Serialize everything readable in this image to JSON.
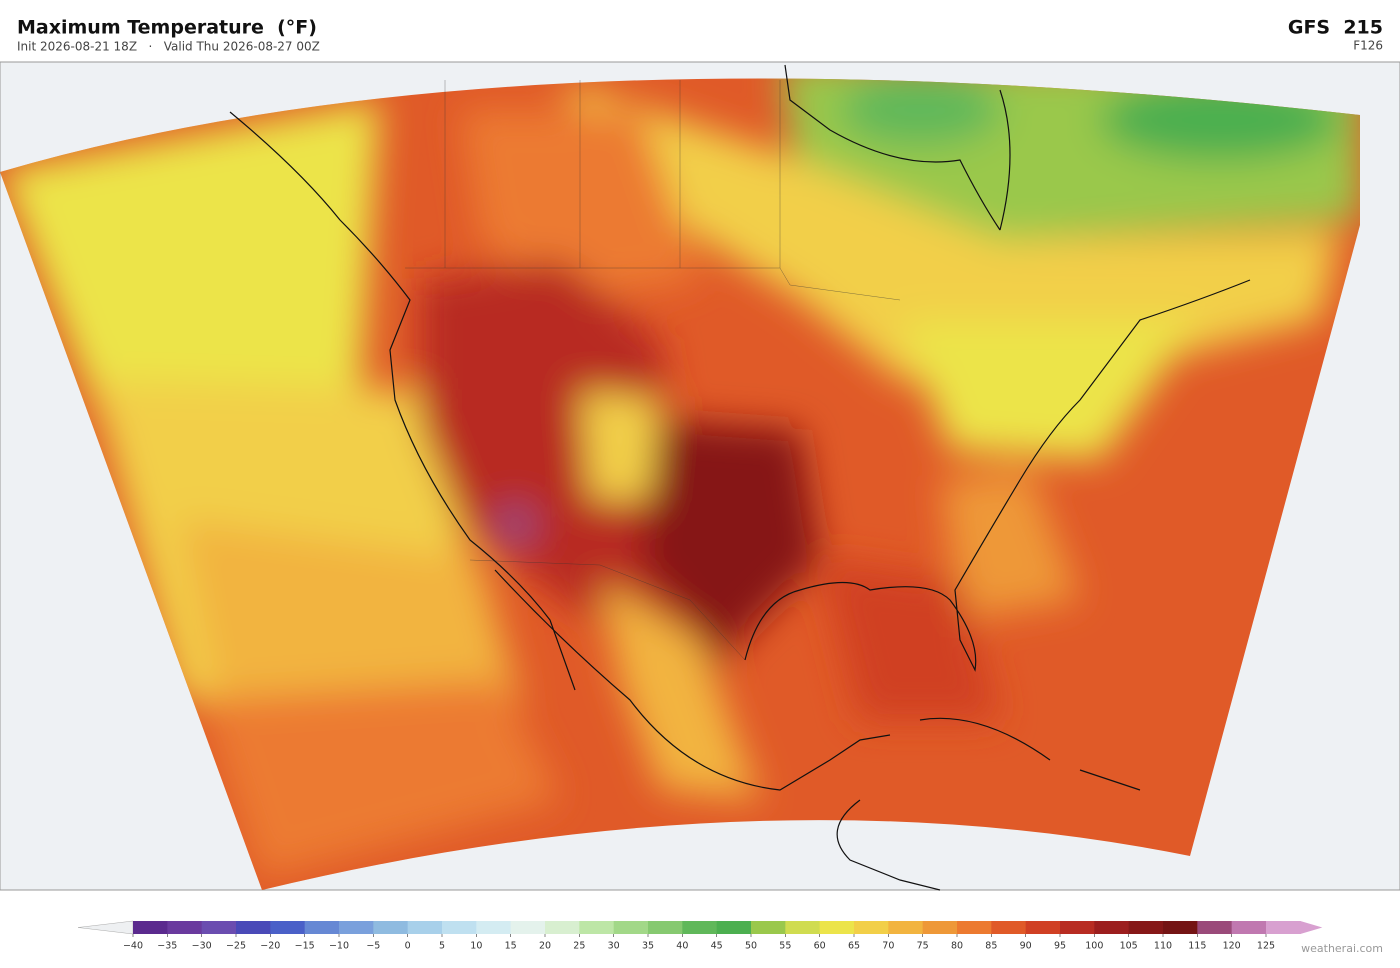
{
  "header": {
    "title": "Maximum Temperature  (°F)",
    "subtitle": "Init 2026-08-21 18Z   ·   Valid Thu 2026-08-27 00Z",
    "model": "GFS  215",
    "forecast_hour": "F126"
  },
  "colorbar": {
    "ticks": [
      {
        "value": -40,
        "label": "−40"
      },
      {
        "value": -35,
        "label": "−35"
      },
      {
        "value": -30,
        "label": "−30"
      },
      {
        "value": -25,
        "label": "−25"
      },
      {
        "value": -20,
        "label": "−20"
      },
      {
        "value": -15,
        "label": "−15"
      },
      {
        "value": -10,
        "label": "−10"
      },
      {
        "value": -5,
        "label": "−5"
      },
      0,
      5,
      10,
      15,
      20,
      25,
      30,
      35,
      40,
      45,
      50,
      55,
      60,
      65,
      70,
      75,
      80,
      85,
      90,
      95,
      100,
      105,
      110,
      115,
      120,
      125
    ],
    "colors": [
      "#5b2a8e",
      "#6a3a9e",
      "#6b4db0",
      "#4a4ab8",
      "#4a60c8",
      "#6688d4",
      "#7aa0dc",
      "#8fbbe0",
      "#a8d0ea",
      "#bfe0f0",
      "#d4ecf2",
      "#e4f2ec",
      "#d8efd0",
      "#bde6a6",
      "#a2d888",
      "#86c970",
      "#60b85a",
      "#4caf50",
      "#9ac84c",
      "#d0dc50",
      "#ece44a",
      "#f2cf48",
      "#f2b440",
      "#ee9838",
      "#ec7a30",
      "#e05a28",
      "#d04024",
      "#b82c22",
      "#9c1e1e",
      "#861818",
      "#741414",
      "#9a4a7a",
      "#c078b0",
      "#d8a0d0"
    ],
    "under_color": "#eef0f2",
    "over_color": "#d8a0d0"
  },
  "footer": {
    "credit": "weatherai.com"
  }
}
